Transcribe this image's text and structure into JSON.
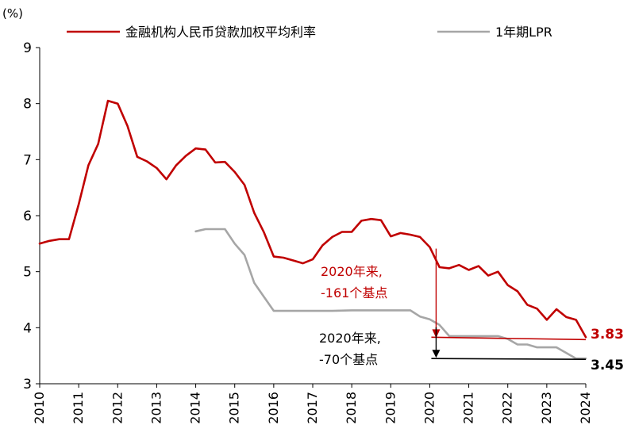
{
  "chart_data": {
    "type": "line",
    "unit_label": "(%)",
    "ylim": [
      3,
      9
    ],
    "y_ticks": [
      "3",
      "4",
      "5",
      "6",
      "7",
      "8",
      "9"
    ],
    "xlim": [
      2010,
      2024
    ],
    "x_ticks": [
      "2010",
      "2011",
      "2012",
      "2013",
      "2014",
      "2015",
      "2016",
      "2017",
      "2018",
      "2019",
      "2020",
      "2021",
      "2022",
      "2023",
      "2024"
    ],
    "grid": false,
    "legend_position": "top",
    "series": [
      {
        "name": "金融机构人民币贷款加权平均利率",
        "color": "#c00000",
        "points": [
          [
            2010.0,
            5.5
          ],
          [
            2010.25,
            5.55
          ],
          [
            2010.5,
            5.58
          ],
          [
            2010.75,
            5.58
          ],
          [
            2011.0,
            6.2
          ],
          [
            2011.25,
            6.9
          ],
          [
            2011.5,
            7.28
          ],
          [
            2011.75,
            8.05
          ],
          [
            2012.0,
            8.0
          ],
          [
            2012.25,
            7.6
          ],
          [
            2012.5,
            7.05
          ],
          [
            2012.75,
            6.97
          ],
          [
            2013.0,
            6.85
          ],
          [
            2013.25,
            6.65
          ],
          [
            2013.5,
            6.9
          ],
          [
            2013.75,
            7.07
          ],
          [
            2014.0,
            7.2
          ],
          [
            2014.25,
            7.18
          ],
          [
            2014.5,
            6.95
          ],
          [
            2014.75,
            6.96
          ],
          [
            2015.0,
            6.78
          ],
          [
            2015.25,
            6.55
          ],
          [
            2015.5,
            6.05
          ],
          [
            2015.75,
            5.7
          ],
          [
            2016.0,
            5.27
          ],
          [
            2016.25,
            5.25
          ],
          [
            2016.5,
            5.2
          ],
          [
            2016.75,
            5.15
          ],
          [
            2017.0,
            5.22
          ],
          [
            2017.25,
            5.47
          ],
          [
            2017.5,
            5.62
          ],
          [
            2017.75,
            5.71
          ],
          [
            2018.0,
            5.71
          ],
          [
            2018.25,
            5.91
          ],
          [
            2018.5,
            5.94
          ],
          [
            2018.75,
            5.92
          ],
          [
            2019.0,
            5.63
          ],
          [
            2019.25,
            5.69
          ],
          [
            2019.5,
            5.66
          ],
          [
            2019.75,
            5.62
          ],
          [
            2020.0,
            5.44
          ],
          [
            2020.25,
            5.08
          ],
          [
            2020.5,
            5.06
          ],
          [
            2020.75,
            5.12
          ],
          [
            2021.0,
            5.03
          ],
          [
            2021.25,
            5.1
          ],
          [
            2021.5,
            4.93
          ],
          [
            2021.75,
            5.0
          ],
          [
            2022.0,
            4.76
          ],
          [
            2022.25,
            4.65
          ],
          [
            2022.5,
            4.41
          ],
          [
            2022.75,
            4.34
          ],
          [
            2023.0,
            4.14
          ],
          [
            2023.25,
            4.33
          ],
          [
            2023.5,
            4.19
          ],
          [
            2023.75,
            4.14
          ],
          [
            2024.0,
            3.83
          ]
        ]
      },
      {
        "name": "1年期LPR",
        "color": "#a6a6a6",
        "points": [
          [
            2014.0,
            5.72
          ],
          [
            2014.25,
            5.76
          ],
          [
            2014.5,
            5.76
          ],
          [
            2014.75,
            5.76
          ],
          [
            2015.0,
            5.5
          ],
          [
            2015.25,
            5.3
          ],
          [
            2015.5,
            4.8
          ],
          [
            2015.75,
            4.55
          ],
          [
            2016.0,
            4.3
          ],
          [
            2016.5,
            4.3
          ],
          [
            2017.0,
            4.3
          ],
          [
            2017.5,
            4.3
          ],
          [
            2018.0,
            4.31
          ],
          [
            2018.5,
            4.31
          ],
          [
            2019.0,
            4.31
          ],
          [
            2019.5,
            4.31
          ],
          [
            2019.75,
            4.2
          ],
          [
            2020.0,
            4.15
          ],
          [
            2020.25,
            4.05
          ],
          [
            2020.5,
            3.85
          ],
          [
            2021.0,
            3.85
          ],
          [
            2021.5,
            3.85
          ],
          [
            2021.75,
            3.85
          ],
          [
            2022.0,
            3.8
          ],
          [
            2022.25,
            3.7
          ],
          [
            2022.5,
            3.7
          ],
          [
            2022.75,
            3.65
          ],
          [
            2023.0,
            3.65
          ],
          [
            2023.25,
            3.65
          ],
          [
            2023.5,
            3.55
          ],
          [
            2023.75,
            3.45
          ],
          [
            2024.0,
            3.45
          ]
        ]
      }
    ],
    "annotations": {
      "red_text_line1": "2020年来,",
      "red_text_line2": "-161个基点",
      "red_color": "#c00000",
      "black_text_line1": "2020年来,",
      "black_text_line2": "-70个基点",
      "black_color": "#000000",
      "change_start_x": 2020.0,
      "red_from": 5.44,
      "red_to": 3.83,
      "black_from": 4.15,
      "black_to": 3.45,
      "end_label_red": "3.83",
      "end_label_black": "3.45"
    }
  }
}
